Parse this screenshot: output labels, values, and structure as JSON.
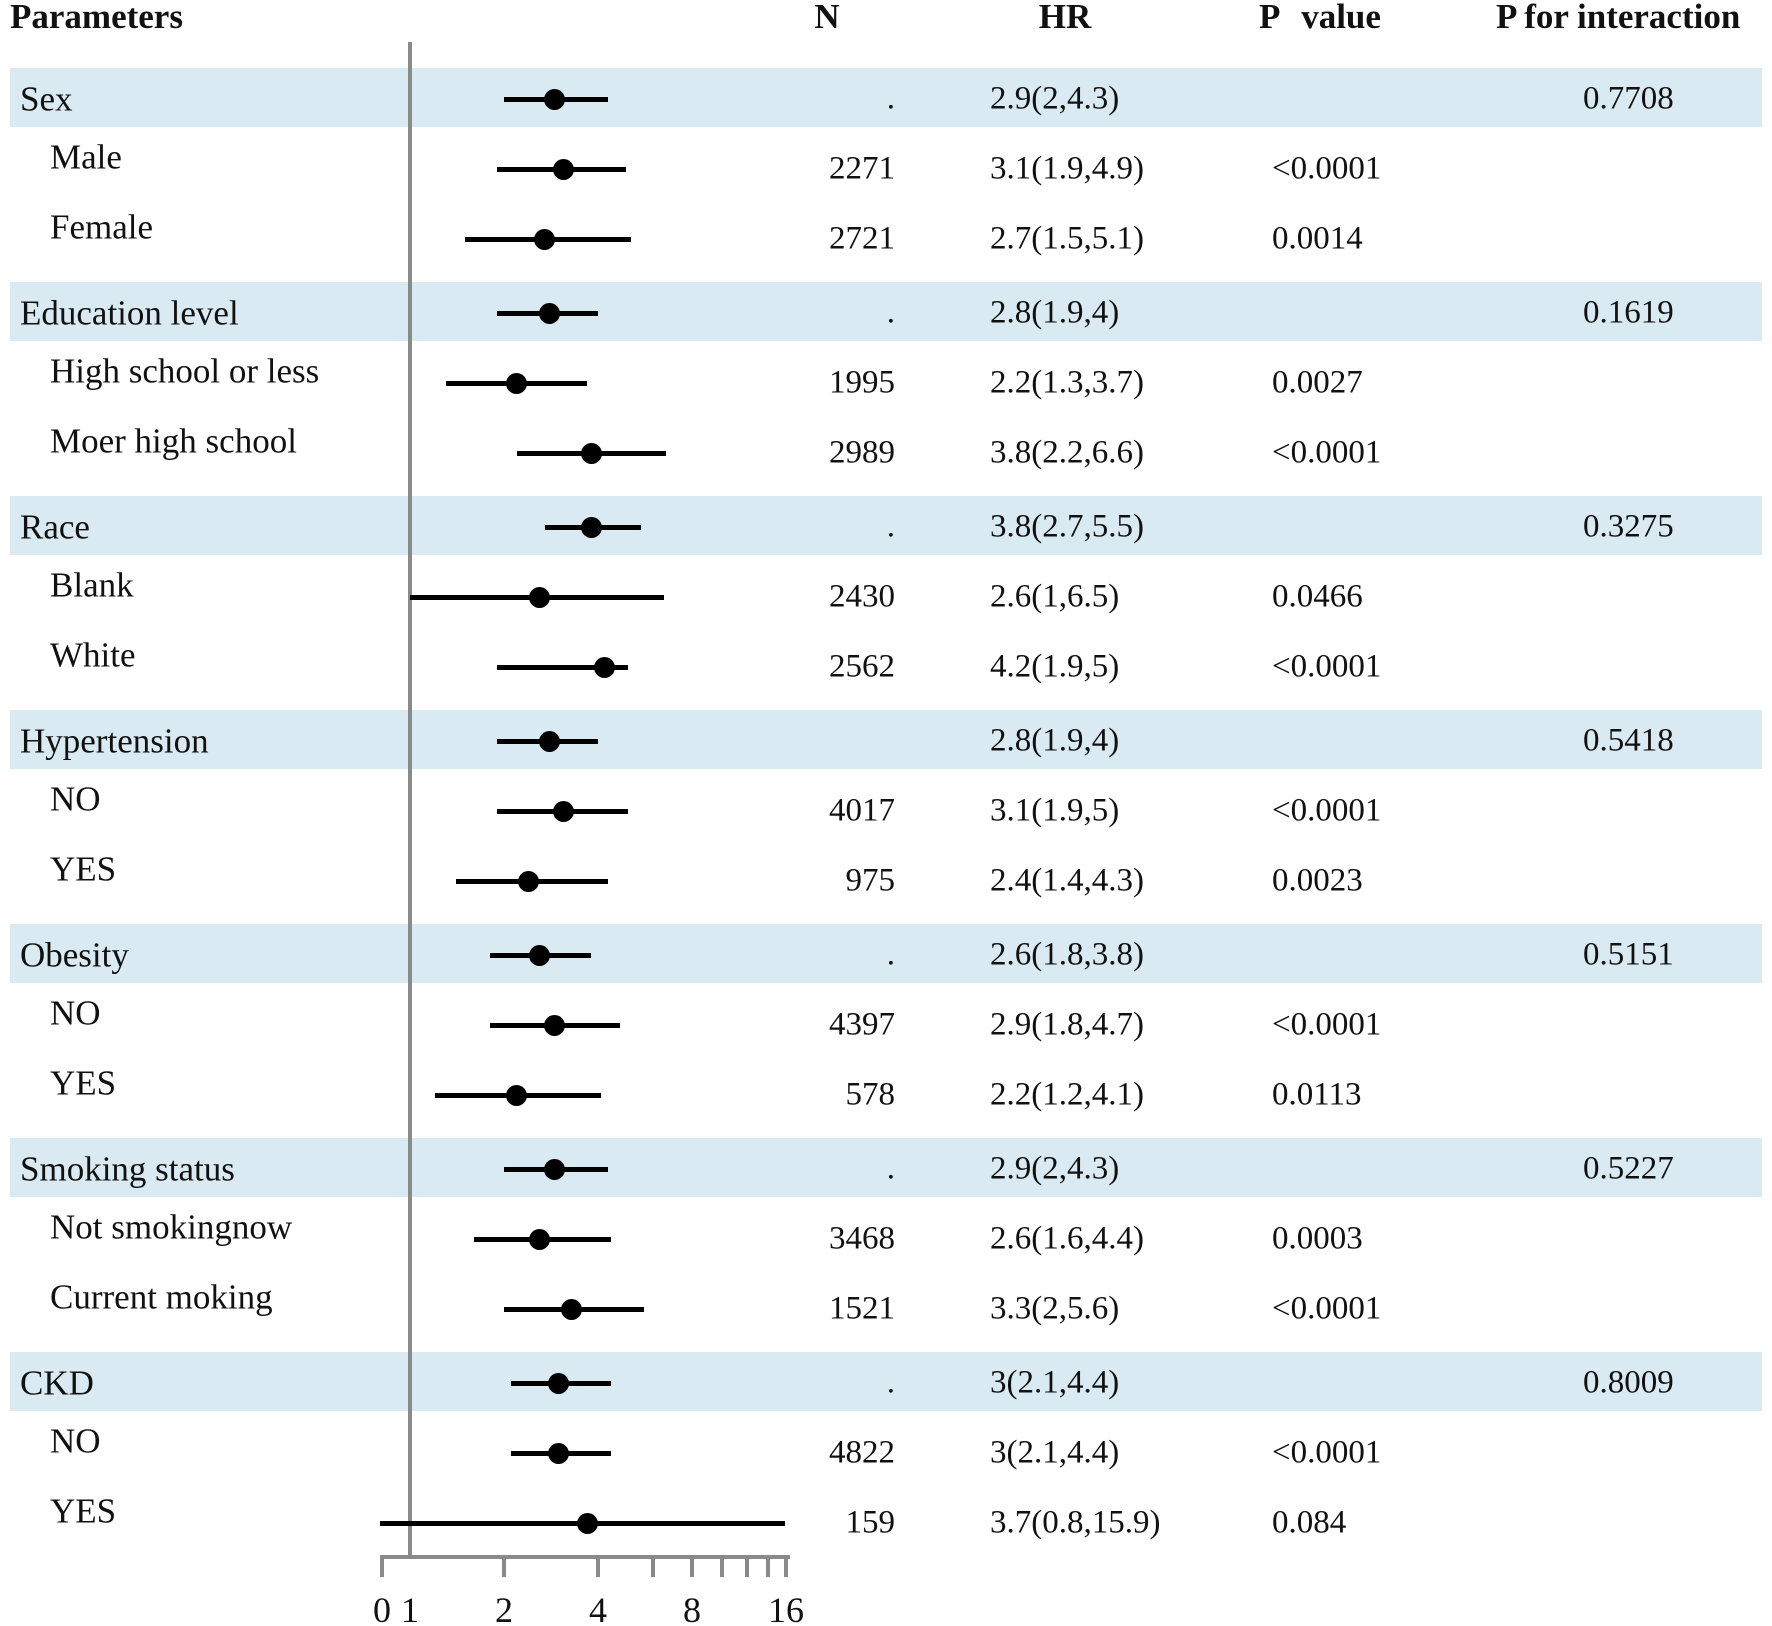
{
  "colors": {
    "band": "#d9eaf2",
    "marker": "#000000",
    "reference_line": "#8a8a8a",
    "axis": "#8a8a8a",
    "text": "#111111"
  },
  "chart_data": {
    "type": "forest",
    "title": "",
    "columns": [
      "Parameters",
      "N",
      "HR",
      "P value",
      "P for interaction"
    ],
    "x_axis": {
      "scale": "log2",
      "labeled_ticks": [
        0,
        1,
        2,
        4,
        8,
        16
      ],
      "tick_marks": [
        0,
        2,
        4,
        6,
        8,
        10,
        12,
        14,
        16
      ],
      "reference_line": 1
    },
    "sections": [
      {
        "group": {
          "label": "Sex",
          "n": ".",
          "hr": "2.9(2,4.3)",
          "est": 2.9,
          "lo": 2,
          "hi": 4.3,
          "p": "",
          "p_interaction": "0.7708"
        },
        "subs": [
          {
            "label": "Male",
            "n": "2271",
            "hr": "3.1(1.9,4.9)",
            "est": 3.1,
            "lo": 1.9,
            "hi": 4.9,
            "p": "<0.0001",
            "p_interaction": ""
          },
          {
            "label": "Female",
            "n": "2721",
            "hr": "2.7(1.5,5.1)",
            "est": 2.7,
            "lo": 1.5,
            "hi": 5.1,
            "p": "0.0014",
            "p_interaction": ""
          }
        ]
      },
      {
        "group": {
          "label": "Education level",
          "n": ".",
          "hr": "2.8(1.9,4)",
          "est": 2.8,
          "lo": 1.9,
          "hi": 4,
          "p": "",
          "p_interaction": "0.1619"
        },
        "subs": [
          {
            "label": "High school or less",
            "n": "1995",
            "hr": "2.2(1.3,3.7)",
            "est": 2.2,
            "lo": 1.3,
            "hi": 3.7,
            "p": "0.0027",
            "p_interaction": ""
          },
          {
            "label": "Moer high school",
            "n": "2989",
            "hr": "3.8(2.2,6.6)",
            "est": 3.8,
            "lo": 2.2,
            "hi": 6.6,
            "p": "<0.0001",
            "p_interaction": ""
          }
        ]
      },
      {
        "group": {
          "label": "Race",
          "n": ".",
          "hr": "3.8(2.7,5.5)",
          "est": 3.8,
          "lo": 2.7,
          "hi": 5.5,
          "p": "",
          "p_interaction": "0.3275"
        },
        "subs": [
          {
            "label": "Blank",
            "n": "2430",
            "hr": "2.6(1,6.5)",
            "est": 2.6,
            "lo": 1,
            "hi": 6.5,
            "p": "0.0466",
            "p_interaction": ""
          },
          {
            "label": "White",
            "n": "2562",
            "hr": "4.2(1.9,5)",
            "est": 4.2,
            "lo": 1.9,
            "hi": 5,
            "p": "<0.0001",
            "p_interaction": ""
          }
        ]
      },
      {
        "group": {
          "label": "Hypertension",
          "n": "",
          "hr": "2.8(1.9,4)",
          "est": 2.8,
          "lo": 1.9,
          "hi": 4,
          "p": "",
          "p_interaction": "0.5418"
        },
        "subs": [
          {
            "label": "NO",
            "n": "4017",
            "hr": "3.1(1.9,5)",
            "est": 3.1,
            "lo": 1.9,
            "hi": 5,
            "p": "<0.0001",
            "p_interaction": ""
          },
          {
            "label": "YES",
            "n": "975",
            "hr": "2.4(1.4,4.3)",
            "est": 2.4,
            "lo": 1.4,
            "hi": 4.3,
            "p": "0.0023",
            "p_interaction": ""
          }
        ]
      },
      {
        "group": {
          "label": "Obesity",
          "n": ".",
          "hr": "2.6(1.8,3.8)",
          "est": 2.6,
          "lo": 1.8,
          "hi": 3.8,
          "p": "",
          "p_interaction": "0.5151"
        },
        "subs": [
          {
            "label": "NO",
            "n": "4397",
            "hr": "2.9(1.8,4.7)",
            "est": 2.9,
            "lo": 1.8,
            "hi": 4.7,
            "p": "<0.0001",
            "p_interaction": ""
          },
          {
            "label": "YES",
            "n": "578",
            "hr": "2.2(1.2,4.1)",
            "est": 2.2,
            "lo": 1.2,
            "hi": 4.1,
            "p": "0.0113",
            "p_interaction": ""
          }
        ]
      },
      {
        "group": {
          "label": "Smoking status",
          "n": ".",
          "hr": "2.9(2,4.3)",
          "est": 2.9,
          "lo": 2,
          "hi": 4.3,
          "p": "",
          "p_interaction": "0.5227"
        },
        "subs": [
          {
            "label": "Not smokingnow",
            "n": "3468",
            "hr": "2.6(1.6,4.4)",
            "est": 2.6,
            "lo": 1.6,
            "hi": 4.4,
            "p": "0.0003",
            "p_interaction": ""
          },
          {
            "label": "Current moking",
            "n": "1521",
            "hr": "3.3(2,5.6)",
            "est": 3.3,
            "lo": 2,
            "hi": 5.6,
            "p": "<0.0001",
            "p_interaction": ""
          }
        ]
      },
      {
        "group": {
          "label": "CKD",
          "n": ".",
          "hr": "3(2.1,4.4)",
          "est": 3,
          "lo": 2.1,
          "hi": 4.4,
          "p": "",
          "p_interaction": "0.8009"
        },
        "subs": [
          {
            "label": "NO",
            "n": "4822",
            "hr": "3(2.1,4.4)",
            "est": 3,
            "lo": 2.1,
            "hi": 4.4,
            "p": "<0.0001",
            "p_interaction": ""
          },
          {
            "label": "YES",
            "n": "159",
            "hr": "3.7(0.8,15.9)",
            "est": 3.7,
            "lo": 0.8,
            "hi": 15.9,
            "p": "0.084",
            "p_interaction": ""
          }
        ]
      }
    ]
  }
}
